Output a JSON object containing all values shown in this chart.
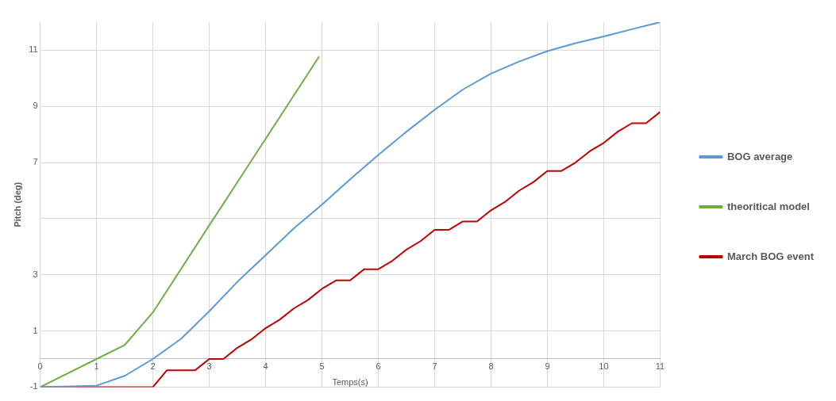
{
  "chart_data": {
    "type": "line",
    "xlabel": "Temps(s)",
    "ylabel": "Pitch (deg)",
    "xlim": [
      0,
      11
    ],
    "xticks": [
      0,
      1,
      2,
      3,
      4,
      5,
      6,
      7,
      8,
      9,
      10,
      11
    ],
    "ylim": [
      -1,
      12
    ],
    "yticks": [
      -1,
      1,
      3,
      {
        "value": 5,
        "label": null
      },
      7,
      9,
      11
    ],
    "grid": true,
    "legend": "right",
    "marker": "none",
    "line_style": "solid",
    "series": [
      {
        "name": "BOG average",
        "color": "#5b9bd5",
        "x": [
          0,
          1,
          1.5,
          2,
          2.5,
          3,
          3.5,
          4,
          4.5,
          5,
          5.5,
          6,
          6.5,
          7,
          7.5,
          8,
          8.5,
          9,
          9.5,
          10,
          10.5,
          11
        ],
        "values": [
          -1,
          -0.95,
          -0.6,
          0,
          0.72,
          1.7,
          2.75,
          3.7,
          4.65,
          5.5,
          6.4,
          7.27,
          8.1,
          8.88,
          9.6,
          10.17,
          10.6,
          10.97,
          11.25,
          11.49,
          11.75,
          12
        ]
      },
      {
        "name": "theoritical model",
        "color": "#70ad47",
        "x": [
          0,
          1,
          1.5,
          2,
          3,
          4,
          4.95
        ],
        "values": [
          -1,
          0,
          0.5,
          1.66,
          4.76,
          7.84,
          10.78
        ]
      },
      {
        "name": "March BOG event",
        "color": "#c00000",
        "x": [
          0,
          2,
          2.25,
          2.75,
          3,
          3.25,
          3.5,
          3.75,
          4,
          4.25,
          4.5,
          4.75,
          5,
          5.25,
          5.5,
          5.75,
          6,
          6.25,
          6.5,
          6.75,
          7,
          7.25,
          7.5,
          7.75,
          8,
          8.25,
          8.5,
          8.75,
          9,
          9.25,
          9.5,
          9.75,
          10,
          10.25,
          10.5,
          10.75,
          11
        ],
        "values": [
          -1,
          -1,
          -0.4,
          -0.4,
          0,
          0,
          0.4,
          0.7,
          1.1,
          1.4,
          1.8,
          2.1,
          2.5,
          2.8,
          2.8,
          3.2,
          3.2,
          3.5,
          3.9,
          4.2,
          4.6,
          4.6,
          4.9,
          4.9,
          5.3,
          5.6,
          6,
          6.3,
          6.7,
          6.7,
          7,
          7.4,
          7.7,
          8.1,
          8.4,
          8.4,
          8.8
        ]
      }
    ]
  }
}
